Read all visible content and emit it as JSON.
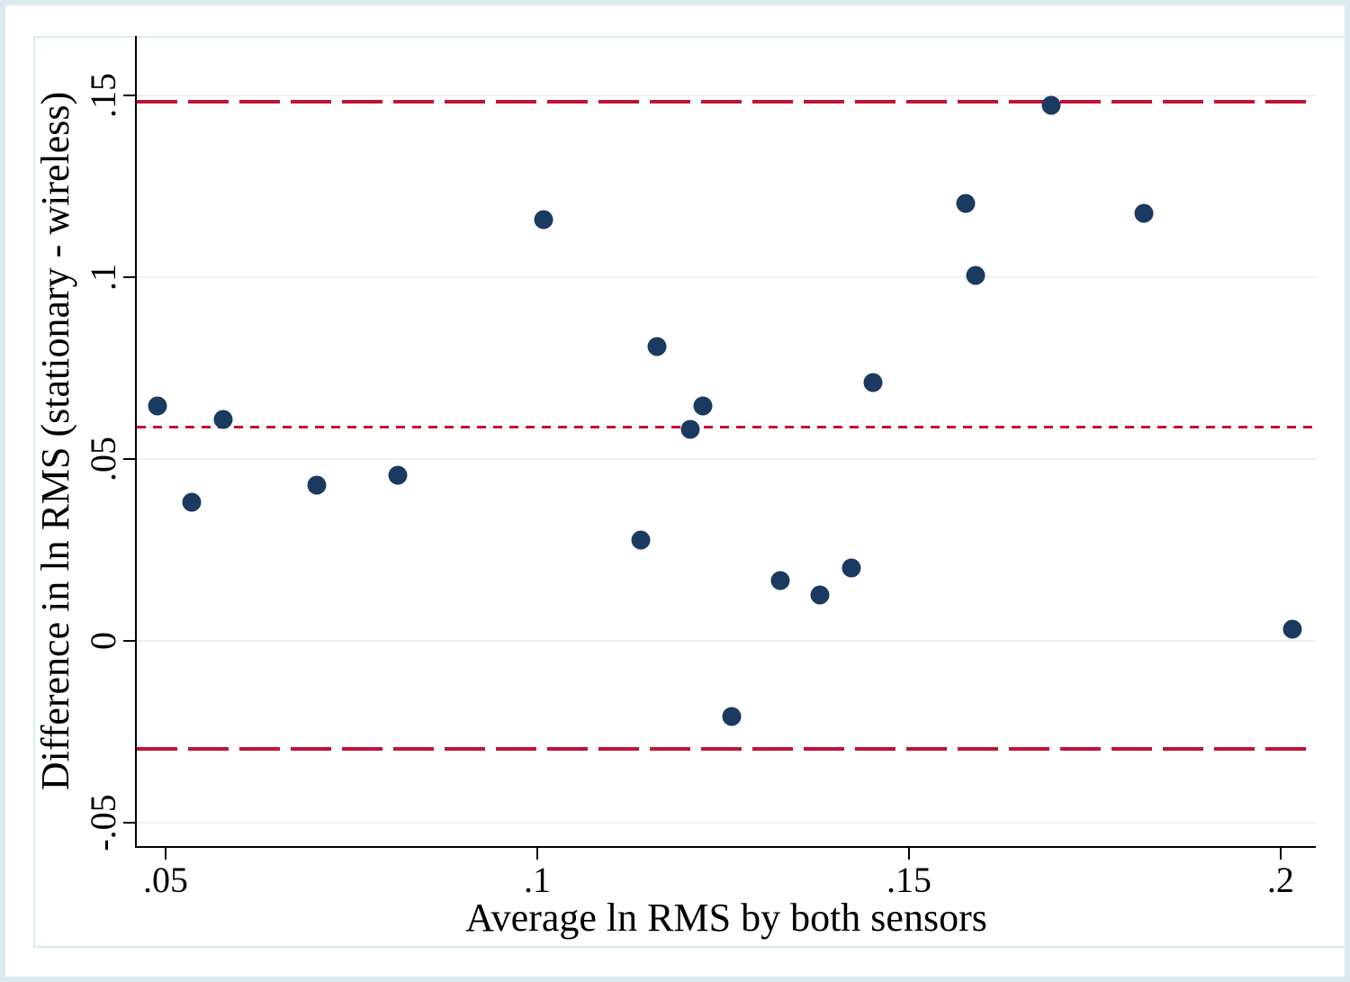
{
  "figure": {
    "kind": "bland-altman-scatter"
  },
  "colors": {
    "marker": "#1b3a5f",
    "reference_line": "#c11338",
    "gridline": "#e9f2f5",
    "frame": "#dce9f0",
    "axis": "#000000"
  },
  "chart_data": {
    "type": "scatter",
    "title": "",
    "xlabel": "Average ln RMS by both sensors",
    "ylabel": "Difference in ln RMS (stationary - wireless)",
    "xlim": [
      0.04613,
      0.20473
    ],
    "ylim": [
      -0.05644,
      0.16634
    ],
    "grid": true,
    "legend": "none",
    "x_ticks": [
      {
        "value": 0.05,
        "label": ".05"
      },
      {
        "value": 0.1,
        "label": ".1"
      },
      {
        "value": 0.15,
        "label": ".15"
      },
      {
        "value": 0.2,
        "label": ".2"
      }
    ],
    "y_ticks": [
      {
        "value": -0.05,
        "label": "-.05"
      },
      {
        "value": 0.0,
        "label": "0"
      },
      {
        "value": 0.05,
        "label": ".05"
      },
      {
        "value": 0.1,
        "label": ".1"
      },
      {
        "value": 0.15,
        "label": ".15"
      }
    ],
    "points": [
      {
        "x": 0.0489,
        "y": 0.0646
      },
      {
        "x": 0.0535,
        "y": 0.0381
      },
      {
        "x": 0.0577,
        "y": 0.0609
      },
      {
        "x": 0.0703,
        "y": 0.0428
      },
      {
        "x": 0.0812,
        "y": 0.0455
      },
      {
        "x": 0.1008,
        "y": 0.1158
      },
      {
        "x": 0.1139,
        "y": 0.0277
      },
      {
        "x": 0.1161,
        "y": 0.0809
      },
      {
        "x": 0.1206,
        "y": 0.0582
      },
      {
        "x": 0.1223,
        "y": 0.0646
      },
      {
        "x": 0.1261,
        "y": -0.0208
      },
      {
        "x": 0.1327,
        "y": 0.0166
      },
      {
        "x": 0.138,
        "y": 0.0126
      },
      {
        "x": 0.1422,
        "y": 0.02
      },
      {
        "x": 0.1452,
        "y": 0.071
      },
      {
        "x": 0.1576,
        "y": 0.1203
      },
      {
        "x": 0.159,
        "y": 0.1005
      },
      {
        "x": 0.1691,
        "y": 0.1473
      },
      {
        "x": 0.1816,
        "y": 0.1176
      },
      {
        "x": 0.2016,
        "y": 0.0032
      }
    ],
    "reference_lines": [
      {
        "name": "upper-limit-of-agreement",
        "value": 0.1483,
        "style": "long-dash"
      },
      {
        "name": "mean-difference",
        "value": 0.0589,
        "style": "short-dash"
      },
      {
        "name": "lower-limit-of-agreement",
        "value": -0.0297,
        "style": "long-dash"
      }
    ]
  }
}
